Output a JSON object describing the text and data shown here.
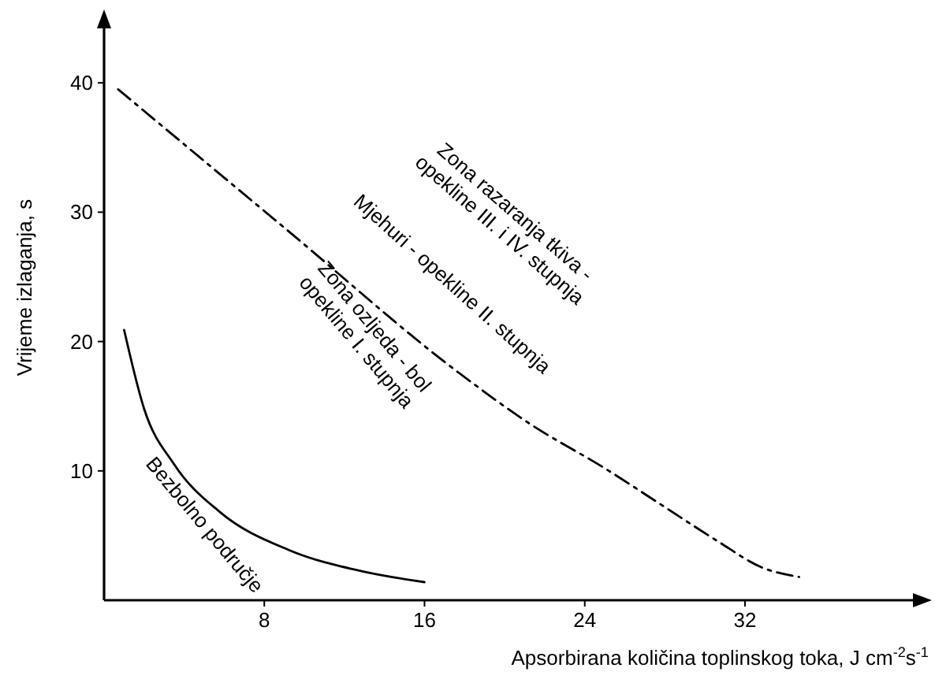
{
  "chart_data": {
    "type": "line",
    "xlabel": "Apsorbirana količina toplinskog toka, J cm$^{-2}$s$^{-1}$",
    "ylabel": "Vrijeme izlaganja, s",
    "xlim": [
      0,
      40.7
    ],
    "ylim": [
      0,
      44.7
    ],
    "xticks": [
      8,
      16,
      24,
      32
    ],
    "yticks": [
      10,
      20,
      30,
      40
    ],
    "grid": false,
    "marker": "none",
    "series": [
      {
        "color": "#000000",
        "line_style": "solid",
        "x": [
          1,
          2,
          3.5,
          5.8,
          9.2,
          13,
          16
        ],
        "values": [
          20.9,
          14.8,
          10.5,
          6.8,
          3.9,
          2.2,
          1.4
        ]
      },
      {
        "color": "#000000",
        "line_style": "dashdot",
        "x": [
          0.7,
          9,
          17.7,
          21.3,
          25,
          28,
          30.6,
          32.9,
          34.7
        ],
        "values": [
          39.5,
          28.8,
          17.6,
          13.6,
          10.2,
          7.2,
          4.6,
          2.5,
          1.8
        ]
      }
    ],
    "annotations": [
      "Zona razaranja tkiva -\nopekline III. i IV. stupnja",
      "Mjehuri - opekline II. stupnja",
      "Zona ozljeda - bol\nopekline I. stupnja",
      "Bezbolno područje"
    ]
  }
}
